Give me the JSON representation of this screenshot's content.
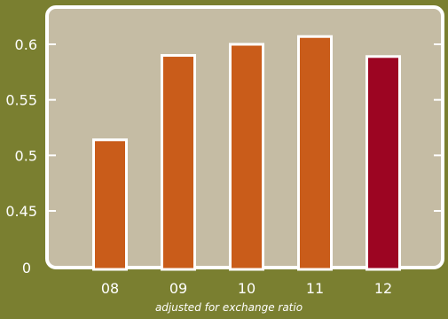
{
  "colors": {
    "background": "#7a7f30",
    "plot_area": "#c5bca4",
    "bar": "#c95c1a",
    "bar_highlight": "#9c0522",
    "bar_outline": "#ffffff",
    "text": "#ffffff"
  },
  "chart_data": {
    "type": "bar",
    "categories": [
      "08",
      "09",
      "10",
      "11",
      "12"
    ],
    "values": [
      0.514,
      0.59,
      0.6,
      0.607,
      0.589
    ],
    "highlight_index": 4,
    "y_ticks": [
      {
        "value": 0.45,
        "label": "0.45"
      },
      {
        "value": 0.5,
        "label": "0.5"
      },
      {
        "value": 0.55,
        "label": "0.55"
      },
      {
        "value": 0.6,
        "label": "0.6"
      }
    ],
    "y_break_label": "0",
    "ylim": [
      0.4,
      0.63
    ],
    "y_axis_break": true,
    "grid": false,
    "caption": "adjusted for exchange ratio",
    "title": "",
    "xlabel": "",
    "ylabel": ""
  }
}
